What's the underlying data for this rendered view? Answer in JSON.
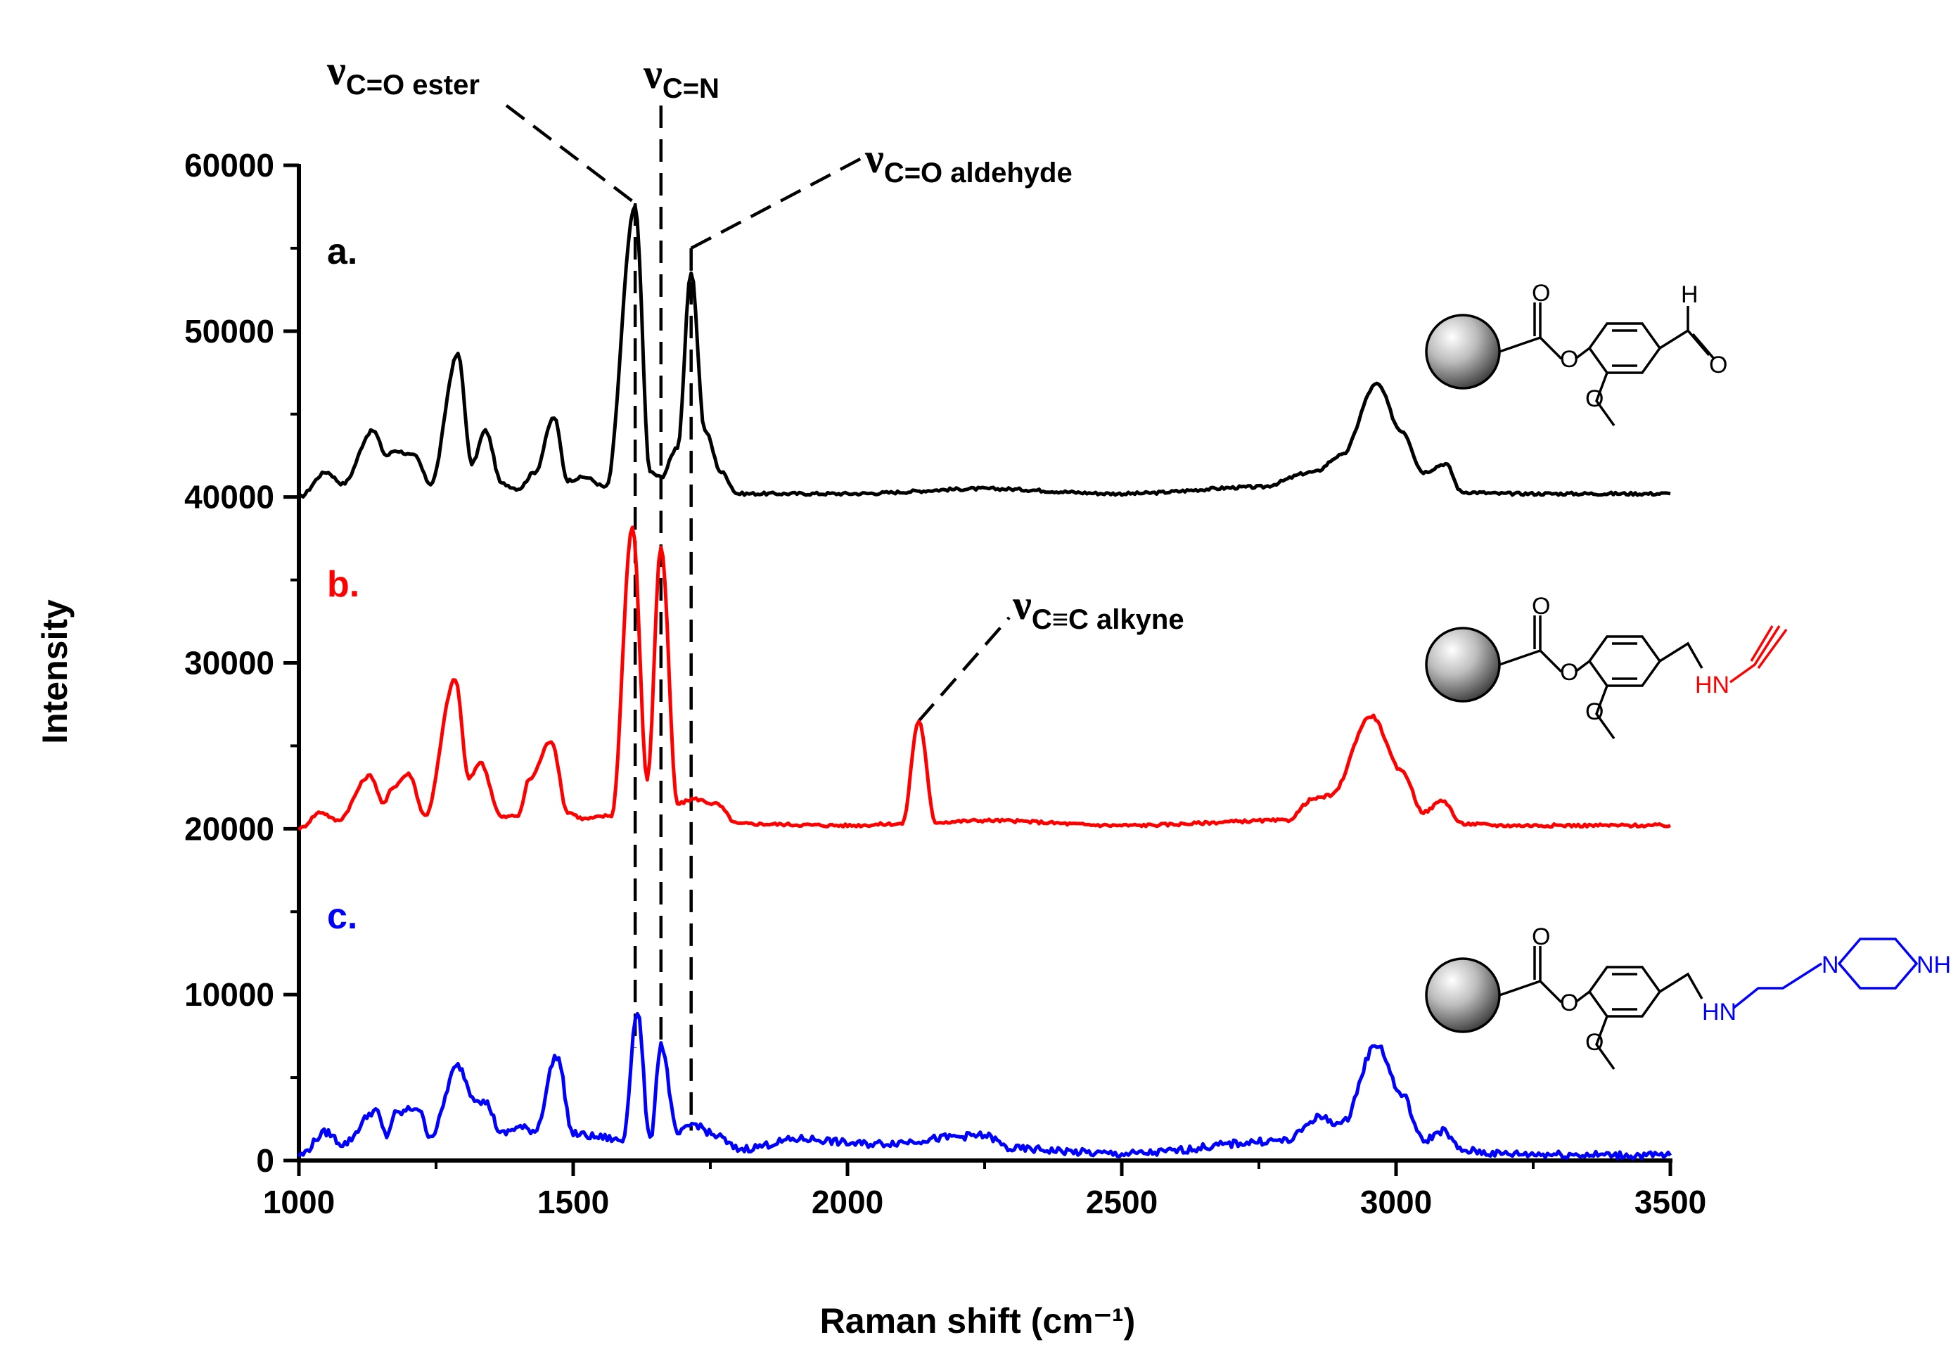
{
  "chart_data": {
    "type": "line",
    "xlabel": "Raman shift (cm⁻¹)",
    "ylabel": "Intensity",
    "xlim": [
      1000,
      3500
    ],
    "ylim": [
      0,
      60000
    ],
    "xticks": [
      "1000",
      "1500",
      "2000",
      "2500",
      "3000",
      "3500"
    ],
    "yticks": [
      "0",
      "10000",
      "20000",
      "30000",
      "40000",
      "50000",
      "60000"
    ],
    "series": [
      {
        "name": "a.",
        "color": "#000000",
        "baseline": 40000,
        "x": [
          1000,
          1050,
          1080,
          1135,
          1160,
          1175,
          1210,
          1240,
          1290,
          1315,
          1340,
          1370,
          1400,
          1430,
          1465,
          1490,
          1520,
          1560,
          1613,
          1640,
          1660,
          1690,
          1715,
          1740,
          1770,
          1800,
          2000,
          2250,
          2500,
          2750,
          2850,
          2900,
          2965,
          3010,
          3050,
          3090,
          3120,
          3200,
          3500
        ],
        "values": [
          40000,
          41500,
          40800,
          44000,
          42500,
          42800,
          42500,
          40800,
          48600,
          42000,
          44000,
          40800,
          40500,
          41500,
          44800,
          41000,
          41200,
          40600,
          57500,
          41500,
          41200,
          43000,
          53500,
          44000,
          41500,
          40200,
          40200,
          40500,
          40200,
          40600,
          41500,
          42500,
          46800,
          44000,
          41500,
          42000,
          40300,
          40200,
          40200
        ]
      },
      {
        "name": "b.",
        "color": "#ff0000",
        "baseline": 20000,
        "x": [
          1000,
          1040,
          1070,
          1130,
          1155,
          1170,
          1200,
          1230,
          1285,
          1310,
          1330,
          1370,
          1400,
          1420,
          1460,
          1490,
          1520,
          1570,
          1608,
          1635,
          1660,
          1690,
          1720,
          1760,
          1800,
          2000,
          2100,
          2130,
          2160,
          2250,
          2500,
          2800,
          2850,
          2880,
          2955,
          3010,
          3050,
          3085,
          3120,
          3200,
          3500
        ],
        "values": [
          20000,
          21000,
          20500,
          23200,
          21500,
          22500,
          23300,
          20800,
          29000,
          23000,
          24000,
          20700,
          20800,
          23000,
          25300,
          21000,
          20600,
          20800,
          38200,
          23000,
          37000,
          21500,
          21800,
          21500,
          20300,
          20200,
          20300,
          26500,
          20400,
          20500,
          20200,
          20500,
          21800,
          22000,
          26800,
          23500,
          21000,
          21700,
          20300,
          20200,
          20200
        ]
      },
      {
        "name": "c.",
        "color": "#0000ff",
        "baseline": 0,
        "x": [
          1000,
          1050,
          1080,
          1140,
          1160,
          1175,
          1215,
          1240,
          1290,
          1320,
          1340,
          1370,
          1400,
          1430,
          1470,
          1500,
          1550,
          1590,
          1617,
          1640,
          1660,
          1690,
          1720,
          1760,
          1800,
          1920,
          2030,
          2250,
          2300,
          2500,
          2800,
          2860,
          2900,
          2965,
          3010,
          3050,
          3085,
          3120,
          3200,
          3500
        ],
        "values": [
          300,
          1700,
          1000,
          3000,
          1500,
          2800,
          3200,
          1500,
          5700,
          3800,
          3500,
          1600,
          2000,
          1800,
          6300,
          1600,
          1400,
          1200,
          9000,
          1200,
          7000,
          1600,
          2200,
          1500,
          700,
          1300,
          1000,
          1500,
          700,
          400,
          1200,
          2600,
          2200,
          7000,
          4000,
          1200,
          1800,
          600,
          400,
          300
        ]
      }
    ],
    "annotations": [
      {
        "main": "ν",
        "sub": "C=O ester"
      },
      {
        "main": "ν",
        "sub": "C=N"
      },
      {
        "main": "ν",
        "sub": "C=O aldehyde"
      },
      {
        "main": "ν",
        "sub": "C≡C alkyne"
      }
    ],
    "structures": [
      {
        "labels": [
          "O",
          "O",
          "O",
          "H",
          "O"
        ],
        "color": "#000000"
      },
      {
        "labels": [
          "O",
          "O",
          "O",
          "HN"
        ],
        "color": "#ff0000"
      },
      {
        "labels": [
          "O",
          "O",
          "O",
          "HN",
          "N",
          "NH"
        ],
        "color": "#0000ff"
      }
    ]
  }
}
